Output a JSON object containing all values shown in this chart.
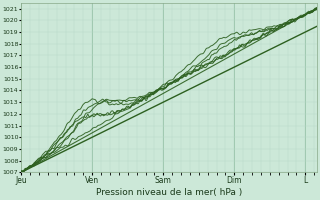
{
  "title": "",
  "xlabel": "Pression niveau de la mer( hPa )",
  "ylabel": "",
  "background_color": "#cce8d8",
  "plot_bg_color": "#cce8d8",
  "grid_color_minor": "#b8d8c8",
  "grid_color_major": "#88b898",
  "line_color_dark": "#2d6020",
  "line_color_mid": "#3d7830",
  "ylim": [
    1007,
    1021.5
  ],
  "ytick_min": 1007,
  "ytick_max": 1021,
  "x_day_labels": [
    "Jeu",
    "Ven",
    "Sam",
    "Dim",
    "L"
  ],
  "x_day_positions": [
    0,
    24,
    48,
    72,
    96
  ],
  "total_hours": 100,
  "figsize": [
    3.2,
    2.0
  ],
  "dpi": 100
}
